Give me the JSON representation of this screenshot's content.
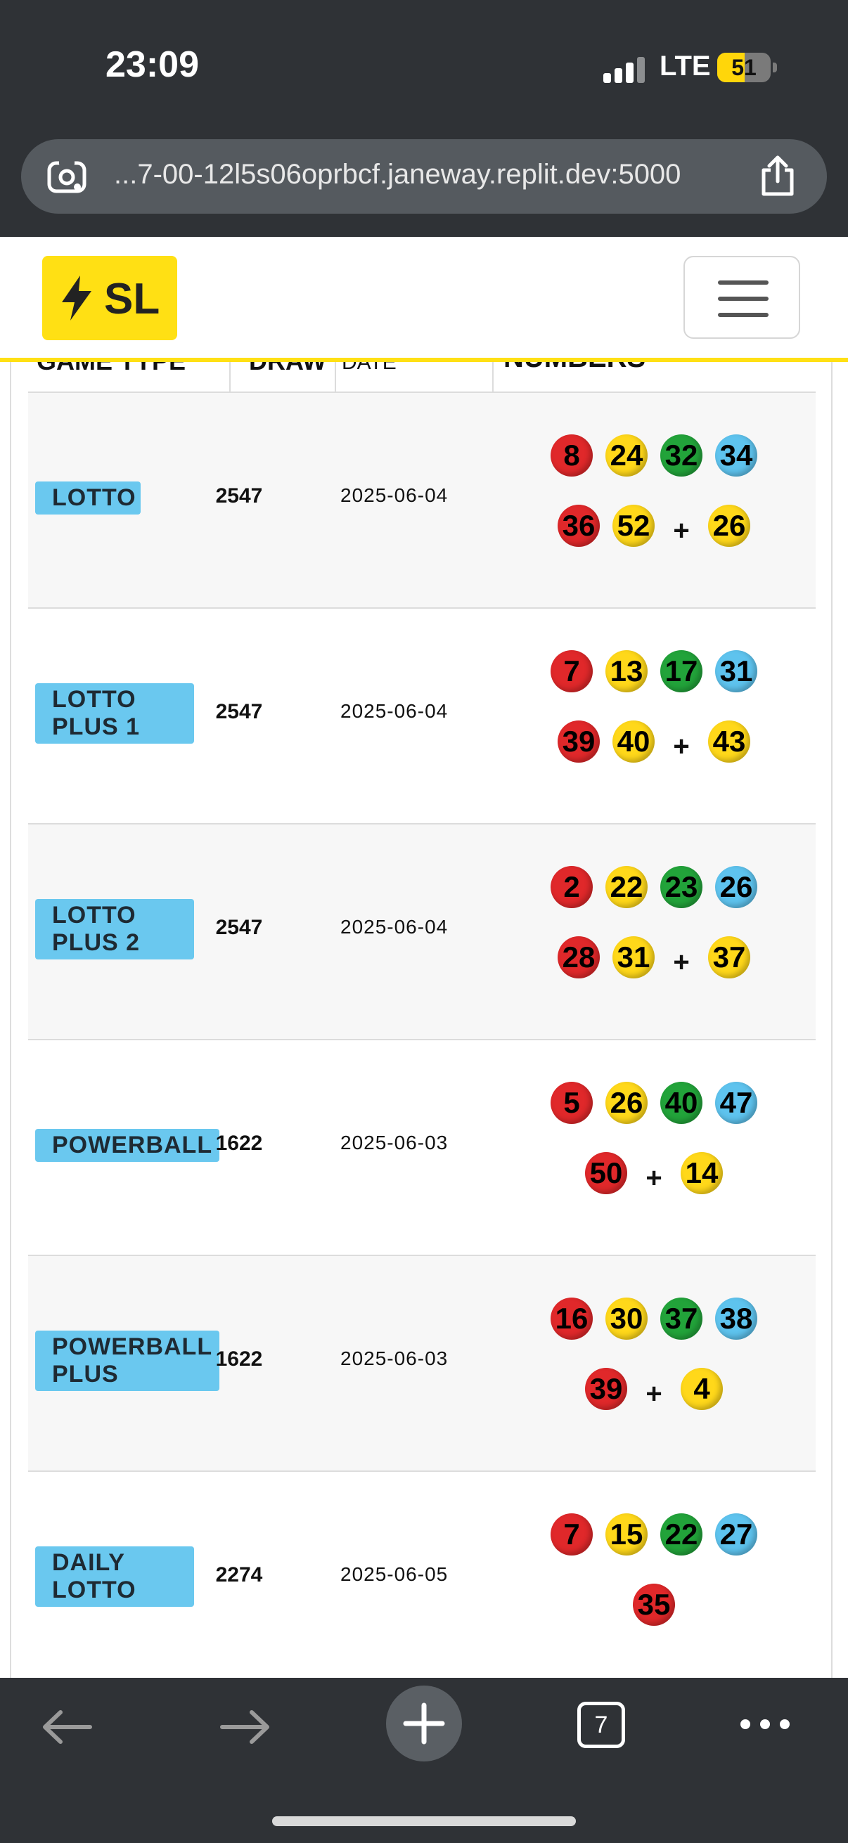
{
  "status_bar": {
    "time": "23:09",
    "network": "LTE",
    "battery": "51",
    "battery_level": 0.51
  },
  "url_bar": {
    "url": "...7-00-12l5s06oprbcf.janeway.replit.dev:5000"
  },
  "site": {
    "logo_text": "SL"
  },
  "table": {
    "headers": [
      "GAME TYPE",
      "DRAW",
      "DATE",
      "NUMBERS"
    ],
    "rows": [
      {
        "game": "LOTTO",
        "draw": "2547",
        "date": "2025-06-04",
        "main": [
          {
            "n": "8",
            "c": "red"
          },
          {
            "n": "24",
            "c": "yellow"
          },
          {
            "n": "32",
            "c": "green"
          },
          {
            "n": "34",
            "c": "blue"
          },
          {
            "n": "36",
            "c": "red"
          },
          {
            "n": "52",
            "c": "yellow"
          }
        ],
        "bonus": "26"
      },
      {
        "game": "LOTTO PLUS 1",
        "draw": "2547",
        "date": "2025-06-04",
        "main": [
          {
            "n": "7",
            "c": "red"
          },
          {
            "n": "13",
            "c": "yellow"
          },
          {
            "n": "17",
            "c": "green"
          },
          {
            "n": "31",
            "c": "blue"
          },
          {
            "n": "39",
            "c": "red"
          },
          {
            "n": "40",
            "c": "yellow"
          }
        ],
        "bonus": "43"
      },
      {
        "game": "LOTTO PLUS 2",
        "draw": "2547",
        "date": "2025-06-04",
        "main": [
          {
            "n": "2",
            "c": "red"
          },
          {
            "n": "22",
            "c": "yellow"
          },
          {
            "n": "23",
            "c": "green"
          },
          {
            "n": "26",
            "c": "blue"
          },
          {
            "n": "28",
            "c": "red"
          },
          {
            "n": "31",
            "c": "yellow"
          }
        ],
        "bonus": "37"
      },
      {
        "game": "POWERBALL",
        "draw": "1622",
        "date": "2025-06-03",
        "main": [
          {
            "n": "5",
            "c": "red"
          },
          {
            "n": "26",
            "c": "yellow"
          },
          {
            "n": "40",
            "c": "green"
          },
          {
            "n": "47",
            "c": "blue"
          },
          {
            "n": "50",
            "c": "red"
          }
        ],
        "bonus": "14"
      },
      {
        "game": "POWERBALL PLUS",
        "draw": "1622",
        "date": "2025-06-03",
        "main": [
          {
            "n": "16",
            "c": "red"
          },
          {
            "n": "30",
            "c": "yellow"
          },
          {
            "n": "37",
            "c": "green"
          },
          {
            "n": "38",
            "c": "blue"
          },
          {
            "n": "39",
            "c": "red"
          }
        ],
        "bonus": "4"
      },
      {
        "game": "DAILY LOTTO",
        "draw": "2274",
        "date": "2025-06-05",
        "main": [
          {
            "n": "7",
            "c": "red"
          },
          {
            "n": "15",
            "c": "yellow"
          },
          {
            "n": "22",
            "c": "green"
          },
          {
            "n": "27",
            "c": "blue"
          },
          {
            "n": "35",
            "c": "red"
          }
        ],
        "bonus": null
      }
    ]
  },
  "toolbar": {
    "tab_count": "7",
    "back_icon": "back-arrow-icon",
    "forward_icon": "forward-arrow-icon",
    "new_tab_icon": "plus-icon",
    "more_icon": "more-dots-icon"
  },
  "colors": {
    "accent": "#ffe014",
    "badge": "#6ac8ef",
    "chrome": "#2f3236"
  }
}
